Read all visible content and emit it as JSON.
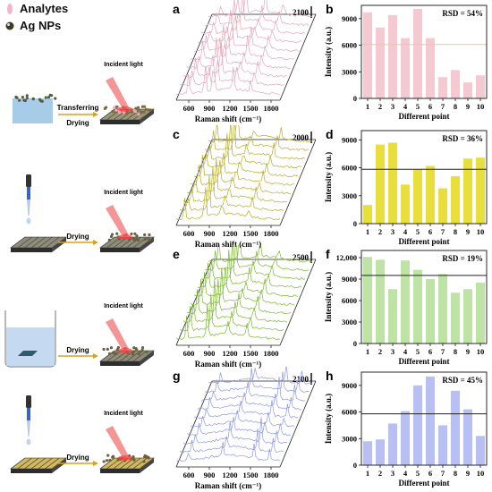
{
  "legend": {
    "analytes": "Analytes",
    "ag_nps": "Ag NPs"
  },
  "schemes": [
    {
      "steps": [
        "Transferring",
        "Drying"
      ],
      "light": "Incident light"
    },
    {
      "steps": [
        "Drying"
      ],
      "light": "Incident light"
    },
    {
      "steps": [
        "Drying"
      ],
      "light": "Incident light"
    },
    {
      "steps": [
        "Drying"
      ],
      "light": "Incident light"
    }
  ],
  "spectra_axis": {
    "xlabel": "Raman shift (cm⁻¹)",
    "ticks": [
      "600",
      "900",
      "1200",
      "1500",
      "1800"
    ]
  },
  "bar_axis": {
    "ylabel": "Intensity (a.u.)",
    "xlabel": "Different point",
    "categories": [
      "1",
      "2",
      "3",
      "4",
      "5",
      "6",
      "7",
      "8",
      "9",
      "10"
    ]
  },
  "chart_data": [
    {
      "panel": "a",
      "type": "line",
      "xlabel": "Raman shift (cm⁻¹)",
      "scale_bar": "2100",
      "color": "#e5a6b9",
      "ticks": [
        "600",
        "900",
        "1200",
        "1500",
        "1800"
      ]
    },
    {
      "panel": "b",
      "type": "bar",
      "annotation": "RSD = 54%",
      "color": "#f4c9d2",
      "line_color": "#f0c890",
      "categories": [
        "1",
        "2",
        "3",
        "4",
        "5",
        "6",
        "7",
        "8",
        "9",
        "10"
      ],
      "values": [
        9700,
        8000,
        9400,
        6800,
        10100,
        6800,
        2400,
        3200,
        1800,
        2600
      ],
      "mean": 6080,
      "ylim": [
        0,
        10500
      ],
      "yticks": [
        "0",
        "3000",
        "6000",
        "9000"
      ],
      "ylabel": "Intensity (a.u.)",
      "xlabel": "Different point"
    },
    {
      "panel": "c",
      "type": "line",
      "xlabel": "Raman shift (cm⁻¹)",
      "scale_bar": "2000",
      "color": "#b7ad2a",
      "ticks": [
        "600",
        "900",
        "1200",
        "1500",
        "1800"
      ]
    },
    {
      "panel": "d",
      "type": "bar",
      "annotation": "RSD = 36%",
      "color": "#e9df3c",
      "line_color": "#222222",
      "categories": [
        "1",
        "2",
        "3",
        "4",
        "5",
        "6",
        "7",
        "8",
        "9",
        "10"
      ],
      "values": [
        2000,
        8500,
        8700,
        4200,
        5800,
        6200,
        3800,
        5100,
        7000,
        7100
      ],
      "mean": 5840,
      "ylim": [
        0,
        10000
      ],
      "yticks": [
        "0",
        "3000",
        "6000",
        "9000"
      ],
      "ylabel": "Intensity (a.u.)",
      "xlabel": "Different point"
    },
    {
      "panel": "e",
      "type": "line",
      "xlabel": "Raman shift (cm⁻¹)",
      "scale_bar": "2500",
      "color": "#7cb832",
      "ticks": [
        "600",
        "900",
        "1200",
        "1500",
        "1800"
      ]
    },
    {
      "panel": "f",
      "type": "bar",
      "annotation": "RSD = 19%",
      "color": "#bfe3a4",
      "line_color": "#222222",
      "categories": [
        "1",
        "2",
        "3",
        "4",
        "5",
        "6",
        "7",
        "8",
        "9",
        "10"
      ],
      "values": [
        12100,
        11700,
        7600,
        11600,
        10300,
        9000,
        9700,
        7100,
        7600,
        8500
      ],
      "mean": 9520,
      "ylim": [
        0,
        13000
      ],
      "yticks": [
        "0",
        "3000",
        "6000",
        "9000",
        "12,000"
      ],
      "ylabel": "Intensity (a.u.)",
      "xlabel": "Different point"
    },
    {
      "panel": "g",
      "type": "line",
      "xlabel": "Raman shift (cm⁻¹)",
      "scale_bar": "2100",
      "color": "#8e97e4",
      "ticks": [
        "600",
        "900",
        "1200",
        "1500",
        "1800"
      ]
    },
    {
      "panel": "h",
      "type": "bar",
      "annotation": "RSD = 45%",
      "color": "#b8bff2",
      "line_color": "#222222",
      "categories": [
        "1",
        "2",
        "3",
        "4",
        "5",
        "6",
        "7",
        "8",
        "9",
        "10"
      ],
      "values": [
        2700,
        2900,
        4700,
        6100,
        9000,
        10000,
        4500,
        8400,
        6300,
        3300
      ],
      "mean": 5790,
      "ylim": [
        0,
        10500
      ],
      "yticks": [
        "0",
        "3000",
        "6000",
        "9000"
      ],
      "ylabel": "Intensity (a.u.)",
      "xlabel": "Different point"
    }
  ]
}
